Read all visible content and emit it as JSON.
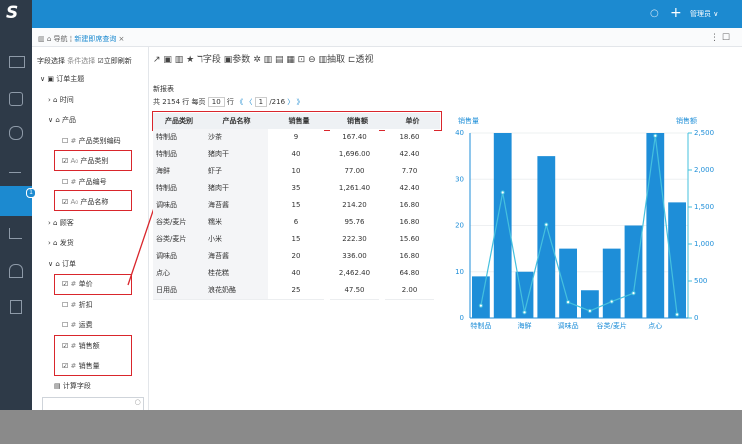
{
  "header": {
    "logo": "S",
    "user": "管理员"
  },
  "tabs": {
    "nav": "导航",
    "active": "新建即席查询"
  },
  "panel": {
    "tabs": [
      "字段选择",
      "条件选择"
    ],
    "refresh": "立即刷新",
    "calc": "计算字段",
    "tree": [
      {
        "label": "订单主题",
        "level": 0,
        "expanded": true
      },
      {
        "label": "时间",
        "level": 1,
        "expanded": false
      },
      {
        "label": "产品",
        "level": 1,
        "expanded": true
      },
      {
        "label": "产品类别编码",
        "level": 2,
        "icon": "#",
        "checked": false
      },
      {
        "label": "产品类别",
        "level": 2,
        "icon": "A₀",
        "checked": true
      },
      {
        "label": "产品编号",
        "level": 2,
        "icon": "#",
        "checked": false
      },
      {
        "label": "产品名称",
        "level": 2,
        "icon": "A₀",
        "checked": true
      },
      {
        "label": "顾客",
        "level": 1,
        "expanded": false
      },
      {
        "label": "发货",
        "level": 1,
        "expanded": false
      },
      {
        "label": "订单",
        "level": 1,
        "expanded": true
      },
      {
        "label": "单价",
        "level": 2,
        "icon": "#",
        "checked": true
      },
      {
        "label": "折扣",
        "level": 2,
        "icon": "#",
        "checked": false
      },
      {
        "label": "运费",
        "level": 2,
        "icon": "#",
        "checked": false
      },
      {
        "label": "销售额",
        "level": 2,
        "icon": "#",
        "checked": true
      },
      {
        "label": "销售量",
        "level": 2,
        "icon": "#",
        "checked": true
      }
    ]
  },
  "toolbar": [
    "字段",
    "参数",
    "抽取",
    "透视"
  ],
  "report": {
    "title": "新报表",
    "pager": [
      "共",
      "2154",
      "行",
      "每页",
      "10",
      "行",
      "《",
      "〈",
      "1",
      "/216",
      "〉",
      "》"
    ]
  },
  "table": {
    "columns": [
      "产品类别",
      "产品名称",
      "销售量",
      "销售额",
      "单价"
    ],
    "rows": [
      [
        "特制品",
        "沙茶",
        "9",
        "167.40",
        "18.60"
      ],
      [
        "特制品",
        "猪肉干",
        "40",
        "1,696.00",
        "42.40"
      ],
      [
        "海鲜",
        "虾子",
        "10",
        "77.00",
        "7.70"
      ],
      [
        "特制品",
        "猪肉干",
        "35",
        "1,261.40",
        "42.40"
      ],
      [
        "调味品",
        "海苔酱",
        "15",
        "214.20",
        "16.80"
      ],
      [
        "谷类/麦片",
        "糯米",
        "6",
        "95.76",
        "16.80"
      ],
      [
        "谷类/麦片",
        "小米",
        "15",
        "222.30",
        "15.60"
      ],
      [
        "调味品",
        "海苔酱",
        "20",
        "336.00",
        "16.80"
      ],
      [
        "点心",
        "桂花糕",
        "40",
        "2,462.40",
        "64.80"
      ],
      [
        "日用品",
        "浪花奶酪",
        "25",
        "47.50",
        "2.00"
      ]
    ]
  },
  "chart": {
    "type": "bar+line",
    "ylabel": "销售量",
    "y2label": "销售额",
    "categories": [
      "特制品",
      null,
      "海鲜",
      null,
      "调味品",
      null,
      "谷类/麦片",
      null,
      "点心",
      null
    ],
    "series": [
      {
        "name": "销售量",
        "color": "#1e8ed8",
        "values": [
          9,
          40,
          10,
          35,
          15,
          6,
          15,
          20,
          40,
          25
        ]
      },
      {
        "name": "销售额",
        "color": "#45c0de",
        "axis": "y2",
        "values": [
          167.4,
          1696,
          77,
          1261.4,
          214.2,
          95.76,
          222.3,
          336,
          2462.4,
          47.5
        ]
      }
    ],
    "ylim": [
      0,
      40
    ],
    "yticks": [
      0,
      10,
      20,
      30,
      40
    ],
    "y2lim": [
      0,
      2500
    ],
    "y2ticks": [
      0,
      {
        "value": 500,
        "label": "500"
      },
      {
        "value": 1000,
        "label": "1,000"
      },
      {
        "value": 1500,
        "label": "1,500"
      },
      {
        "value": 2000,
        "label": "2,000"
      },
      {
        "value": 2500,
        "label": "2,500"
      }
    ]
  }
}
